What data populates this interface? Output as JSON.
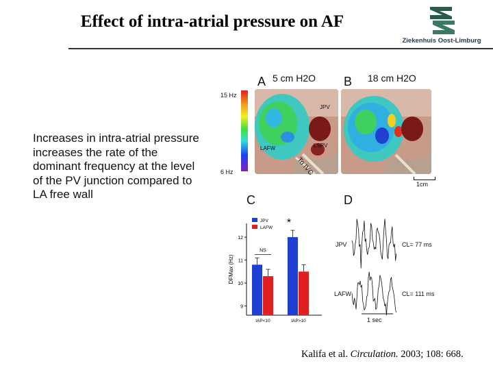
{
  "slide": {
    "title": "Effect of intra-atrial pressure on AF",
    "logo_text": "Ziekenhuis Oost-Limburg",
    "body_text": "Increases in intra-atrial pressure increases the rate of the dominant frequency at the level of the PV junction compared to LA free wall",
    "citation_authors": "Kalifa et al. ",
    "citation_journal": "Circulation.",
    "citation_details": " 2003; 108: 668."
  },
  "panels": {
    "a_letter": "A",
    "b_letter": "B",
    "c_letter": "C",
    "d_letter": "D",
    "a_label": "5 cm H2O",
    "b_label": "18 cm H2O",
    "colorbar_top": "15 Hz",
    "colorbar_bottom": "6 Hz",
    "a_jpv": "JPV",
    "a_lafw": "LAFW",
    "a_lspv": "LSPV",
    "a_toivc": "To IVC",
    "b_scale": "1cm"
  },
  "chart_data": {
    "type": "bar",
    "categories": [
      "IAP<10",
      "IAP>10"
    ],
    "series": [
      {
        "name": "JPV",
        "values": [
          10.8,
          12.0
        ],
        "color": "#1f3fd0"
      },
      {
        "name": "LAFW",
        "values": [
          10.3,
          10.5
        ],
        "color": "#e02020"
      }
    ],
    "ylabel": "DFMax (Hz)",
    "ylim": [
      8.6,
      12.6
    ],
    "yticks": [
      9,
      10,
      11,
      12
    ],
    "annotations": [
      "NS",
      "*"
    ],
    "legend_position": "top-left"
  },
  "traces": {
    "jpv_label": "JPV",
    "jpv_cl": "CL= 77 ms",
    "lafw_label": "LAFW",
    "lafw_cl": "CL= 111 ms",
    "time_scale": "1 sec"
  },
  "colors": {
    "jpv_blue": "#1f3fd0",
    "lafw_red": "#e02020"
  }
}
